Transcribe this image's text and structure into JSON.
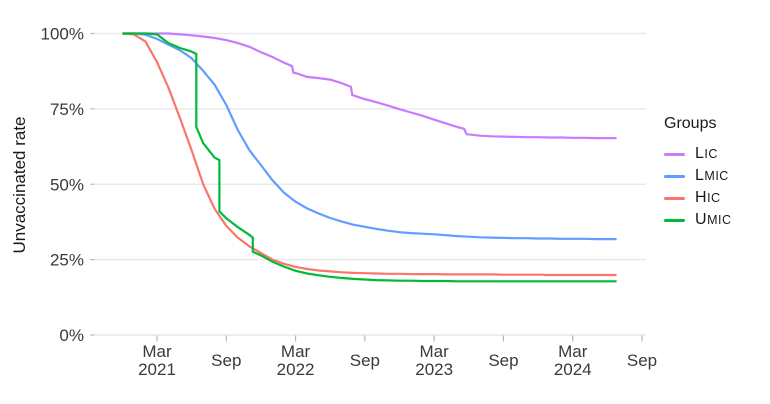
{
  "chart_data": {
    "type": "line",
    "title": "",
    "xlabel": "",
    "ylabel": "Unvaccinated rate",
    "grid": "horizontal-only",
    "background": "#ffffff",
    "gridline_color": "#e9e9e9",
    "tick_color": "#b5b5b5",
    "axis_text_color": "#3a3a3a",
    "x_unit": "months since Dec 2020 (0 = Dec 2020)",
    "x_range_months": [
      -2.4,
      45.4
    ],
    "ylim": [
      0,
      100
    ],
    "y_ticks": [
      {
        "v": 0,
        "label": "0%"
      },
      {
        "v": 25,
        "label": "25%"
      },
      {
        "v": 50,
        "label": "50%"
      },
      {
        "v": 75,
        "label": "75%"
      },
      {
        "v": 100,
        "label": "100%"
      }
    ],
    "x_ticks": [
      {
        "m": 3,
        "lines": [
          "Mar",
          "2021"
        ]
      },
      {
        "m": 9,
        "lines": [
          "Sep"
        ]
      },
      {
        "m": 15,
        "lines": [
          "Mar",
          "2022"
        ]
      },
      {
        "m": 21,
        "lines": [
          "Sep"
        ]
      },
      {
        "m": 27,
        "lines": [
          "Mar",
          "2023"
        ]
      },
      {
        "m": 33,
        "lines": [
          "Sep"
        ]
      },
      {
        "m": 39,
        "lines": [
          "Mar",
          "2024"
        ]
      },
      {
        "m": 45,
        "lines": [
          "Sep"
        ]
      }
    ],
    "legend": {
      "title": "Groups",
      "position": "right",
      "entries": [
        "LIC",
        "LMIC",
        "HIC",
        "UMIC"
      ]
    },
    "series": [
      {
        "name": "LIC",
        "color": "#C77CFF",
        "points": [
          [
            0,
            100
          ],
          [
            1,
            100
          ],
          [
            2,
            100
          ],
          [
            3,
            100
          ],
          [
            4,
            100
          ],
          [
            5,
            99.7
          ],
          [
            6,
            99.4
          ],
          [
            7,
            99.0
          ],
          [
            8,
            98.5
          ],
          [
            9,
            97.8
          ],
          [
            10,
            96.8
          ],
          [
            11,
            95.6
          ],
          [
            12,
            93.8
          ],
          [
            13,
            92.2
          ],
          [
            14,
            90.3
          ],
          [
            14.7,
            89.2
          ],
          [
            14.8,
            87.0
          ],
          [
            15,
            86.9
          ],
          [
            16,
            85.6
          ],
          [
            17,
            85.2
          ],
          [
            18,
            84.7
          ],
          [
            19,
            83.5
          ],
          [
            19.8,
            82.3
          ],
          [
            19.9,
            79.6
          ],
          [
            21,
            78.2
          ],
          [
            22,
            77.2
          ],
          [
            23,
            76.1
          ],
          [
            24,
            74.9
          ],
          [
            25,
            73.8
          ],
          [
            26,
            72.7
          ],
          [
            27,
            71.4
          ],
          [
            28,
            70.2
          ],
          [
            29,
            69.0
          ],
          [
            29.6,
            68.4
          ],
          [
            29.8,
            66.6
          ],
          [
            31,
            66.1
          ],
          [
            32,
            65.9
          ],
          [
            33,
            65.8
          ],
          [
            34,
            65.7
          ],
          [
            35,
            65.6
          ],
          [
            36,
            65.6
          ],
          [
            37,
            65.5
          ],
          [
            38,
            65.5
          ],
          [
            39,
            65.4
          ],
          [
            40,
            65.4
          ],
          [
            41,
            65.3
          ],
          [
            42.8,
            65.3
          ]
        ]
      },
      {
        "name": "LMIC",
        "color": "#619CFF",
        "points": [
          [
            0,
            100
          ],
          [
            1,
            100
          ],
          [
            2,
            99.6
          ],
          [
            3,
            98.2
          ],
          [
            4,
            96.3
          ],
          [
            5,
            94.4
          ],
          [
            6,
            91.8
          ],
          [
            7,
            87.6
          ],
          [
            8,
            83.0
          ],
          [
            9,
            76.3
          ],
          [
            10,
            68.0
          ],
          [
            11,
            61.3
          ],
          [
            12,
            56.4
          ],
          [
            13,
            51.3
          ],
          [
            14,
            47.2
          ],
          [
            15,
            44.2
          ],
          [
            16,
            42.0
          ],
          [
            17,
            40.3
          ],
          [
            18,
            38.8
          ],
          [
            19,
            37.6
          ],
          [
            20,
            36.6
          ],
          [
            21,
            35.9
          ],
          [
            22,
            35.2
          ],
          [
            23,
            34.6
          ],
          [
            24,
            34.1
          ],
          [
            25,
            33.8
          ],
          [
            26,
            33.6
          ],
          [
            27,
            33.4
          ],
          [
            28,
            33.1
          ],
          [
            29,
            32.8
          ],
          [
            30,
            32.6
          ],
          [
            31,
            32.4
          ],
          [
            32,
            32.3
          ],
          [
            33,
            32.2
          ],
          [
            34,
            32.1
          ],
          [
            35,
            32.1
          ],
          [
            36,
            32.0
          ],
          [
            37,
            32.0
          ],
          [
            38,
            31.9
          ],
          [
            39,
            31.9
          ],
          [
            40,
            31.9
          ],
          [
            41,
            31.8
          ],
          [
            42.8,
            31.8
          ]
        ]
      },
      {
        "name": "HIC",
        "color": "#F8766D",
        "points": [
          [
            0,
            100
          ],
          [
            1,
            99.7
          ],
          [
            2,
            97.3
          ],
          [
            3,
            90.5
          ],
          [
            4,
            82.0
          ],
          [
            5,
            71.8
          ],
          [
            6,
            61.3
          ],
          [
            7,
            50.0
          ],
          [
            8,
            41.8
          ],
          [
            9,
            36.2
          ],
          [
            10,
            32.3
          ],
          [
            11,
            29.4
          ],
          [
            12,
            27.2
          ],
          [
            13,
            25.0
          ],
          [
            14,
            23.6
          ],
          [
            15,
            22.6
          ],
          [
            16,
            21.9
          ],
          [
            17,
            21.4
          ],
          [
            18,
            21.1
          ],
          [
            19,
            20.8
          ],
          [
            20,
            20.6
          ],
          [
            21,
            20.5
          ],
          [
            22,
            20.4
          ],
          [
            23,
            20.3
          ],
          [
            24,
            20.3
          ],
          [
            25,
            20.2
          ],
          [
            26,
            20.2
          ],
          [
            27,
            20.2
          ],
          [
            28,
            20.1
          ],
          [
            29,
            20.1
          ],
          [
            30,
            20.1
          ],
          [
            31,
            20.1
          ],
          [
            32,
            20.1
          ],
          [
            33,
            20.0
          ],
          [
            34,
            20.0
          ],
          [
            35,
            20.0
          ],
          [
            36.5,
            20.0
          ],
          [
            36.6,
            19.9
          ],
          [
            38,
            19.9
          ],
          [
            40,
            19.9
          ],
          [
            42.8,
            19.9
          ]
        ]
      },
      {
        "name": "UMIC",
        "color": "#00BA38",
        "points": [
          [
            0,
            100
          ],
          [
            1,
            100
          ],
          [
            2,
            100
          ],
          [
            3,
            99.7
          ],
          [
            4,
            96.8
          ],
          [
            5,
            95.2
          ],
          [
            6,
            94.0
          ],
          [
            6.3,
            93.4
          ],
          [
            6.4,
            93.3
          ],
          [
            6.4,
            69.0
          ],
          [
            7,
            63.6
          ],
          [
            8,
            58.8
          ],
          [
            8.4,
            58.0
          ],
          [
            8.4,
            41.0
          ],
          [
            9,
            38.7
          ],
          [
            10,
            35.8
          ],
          [
            11,
            33.2
          ],
          [
            11.3,
            32.3
          ],
          [
            11.3,
            27.6
          ],
          [
            12,
            26.4
          ],
          [
            13,
            24.3
          ],
          [
            14,
            22.7
          ],
          [
            15,
            21.3
          ],
          [
            16,
            20.4
          ],
          [
            17,
            19.8
          ],
          [
            18,
            19.3
          ],
          [
            19,
            18.9
          ],
          [
            20,
            18.6
          ],
          [
            21,
            18.4
          ],
          [
            22,
            18.2
          ],
          [
            23,
            18.1
          ],
          [
            24,
            18.0
          ],
          [
            25,
            18.0
          ],
          [
            26,
            17.9
          ],
          [
            27,
            17.9
          ],
          [
            28,
            17.9
          ],
          [
            29,
            17.8
          ],
          [
            30,
            17.8
          ],
          [
            32,
            17.8
          ],
          [
            34,
            17.8
          ],
          [
            36,
            17.8
          ],
          [
            38,
            17.8
          ],
          [
            40,
            17.8
          ],
          [
            42.8,
            17.8
          ]
        ]
      }
    ]
  }
}
